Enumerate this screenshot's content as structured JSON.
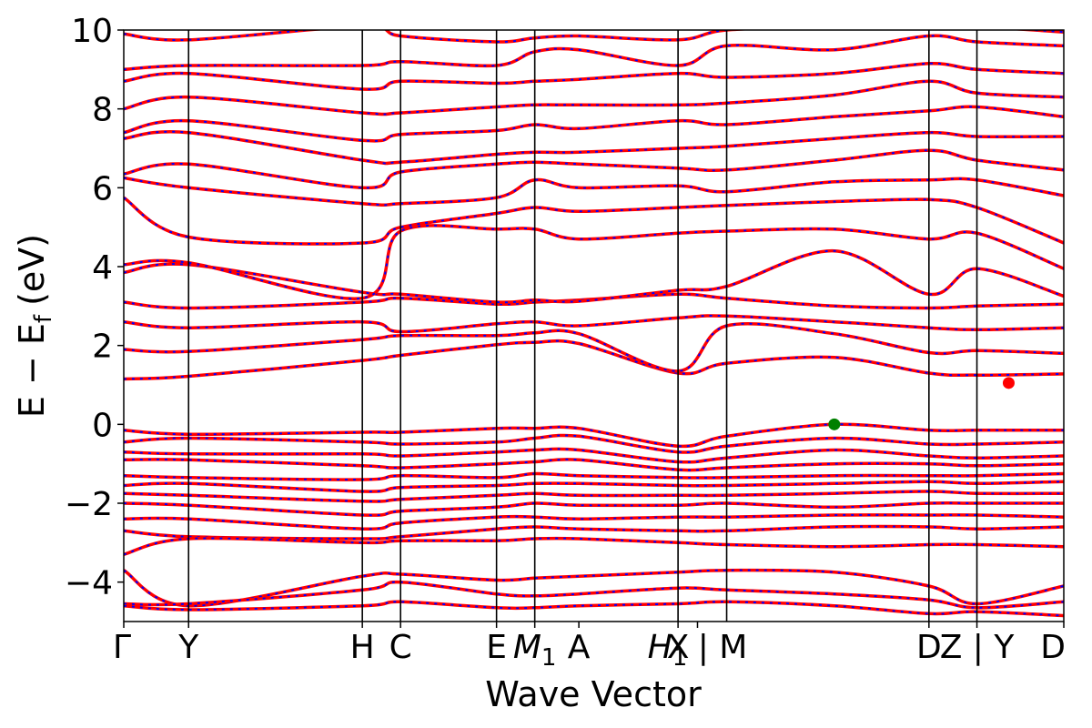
{
  "chart_data": {
    "type": "line",
    "title": "",
    "xlabel": "Wave Vector",
    "ylabel": "E − E",
    "ylabel_subscript": "f",
    "ylabel_unit": "(eV)",
    "ylim": [
      -5,
      10
    ],
    "xlim": [
      0,
      14.5
    ],
    "yticks": [
      -4,
      -2,
      0,
      2,
      4,
      6,
      8,
      10
    ],
    "ytick_labels": [
      "−4",
      "−2",
      "0",
      "2",
      "4",
      "6",
      "8",
      "10"
    ],
    "kpoints": [
      {
        "x": 0,
        "label": "Γ"
      },
      {
        "x": 1.0,
        "label": "Y"
      },
      {
        "x": 3.68,
        "label": "H"
      },
      {
        "x": 4.27,
        "label": "C"
      },
      {
        "x": 5.75,
        "label": "E"
      },
      {
        "x": 6.34,
        "label": "M1"
      },
      {
        "x": 7.02,
        "label": "A"
      },
      {
        "x": 8.55,
        "label": "X"
      },
      {
        "x": 8.85,
        "label": "H1 | M"
      },
      {
        "x": 12.42,
        "label": "D"
      },
      {
        "x": 13.16,
        "label": "Z | Y"
      },
      {
        "x": 14.5,
        "label": "D"
      }
    ],
    "vertical_lines": [
      1.0,
      3.68,
      4.27,
      5.75,
      6.34,
      8.55,
      9.3,
      12.42,
      13.16
    ],
    "special_points": [
      {
        "name": "VBM",
        "x": 10.96,
        "y": 0.0,
        "color": "#008000"
      },
      {
        "name": "CBM",
        "x": 13.65,
        "y": 1.05,
        "color": "#ff0000"
      }
    ],
    "series": [
      {
        "color": "#ff0000",
        "style": "solid"
      },
      {
        "color": "#0000ff",
        "style": "dotted"
      }
    ],
    "grid": false,
    "bands": [
      {
        "kx": [
          0,
          1.0,
          3.68,
          4.27,
          5.75,
          6.34,
          7.02,
          8.55,
          9.3,
          10.96,
          12.42,
          13.16,
          14.5
        ],
        "e": [
          1.15,
          1.22,
          1.62,
          1.75,
          2.02,
          2.08,
          2.05,
          1.3,
          1.55,
          1.7,
          1.3,
          1.25,
          1.28
        ]
      },
      {
        "kx": [
          0,
          1.0,
          3.68,
          4.27,
          5.75,
          6.34,
          7.02,
          8.55,
          9.3,
          10.96,
          12.42,
          13.16,
          14.5
        ],
        "e": [
          1.9,
          1.85,
          2.15,
          2.25,
          2.25,
          2.32,
          2.3,
          1.35,
          2.5,
          2.3,
          1.82,
          1.87,
          1.8
        ]
      },
      {
        "kx": [
          0,
          1.0,
          3.68,
          4.27,
          5.75,
          6.34,
          7.02,
          8.55,
          9.3,
          10.96,
          12.42,
          13.16,
          14.5
        ],
        "e": [
          2.6,
          2.45,
          2.6,
          2.35,
          2.55,
          2.6,
          2.5,
          2.7,
          2.75,
          2.6,
          2.45,
          2.4,
          2.45
        ]
      },
      {
        "kx": [
          0,
          1.0,
          3.68,
          4.27,
          5.75,
          6.34,
          7.02,
          8.55,
          9.3,
          10.96,
          12.42,
          13.16,
          14.5
        ],
        "e": [
          3.1,
          2.95,
          3.1,
          3.2,
          3.05,
          3.1,
          3.15,
          3.3,
          3.2,
          3.0,
          2.95,
          3.0,
          3.05
        ]
      },
      {
        "kx": [
          0,
          1.0,
          3.68,
          4.27,
          5.75,
          6.34,
          7.02,
          8.55,
          9.3,
          10.96,
          12.42,
          13.16,
          14.5
        ],
        "e": [
          3.85,
          4.05,
          3.35,
          3.3,
          3.1,
          3.15,
          3.12,
          3.4,
          3.5,
          4.4,
          3.3,
          3.95,
          3.25
        ]
      },
      {
        "kx": [
          0,
          1.0,
          3.68,
          4.27,
          5.75,
          6.34,
          7.02,
          8.55,
          9.3,
          10.96,
          12.42,
          13.16,
          14.5
        ],
        "e": [
          4.05,
          4.1,
          3.2,
          4.9,
          4.95,
          4.95,
          4.7,
          4.85,
          4.9,
          4.95,
          4.7,
          4.85,
          3.95
        ]
      },
      {
        "kx": [
          0,
          1.0,
          3.68,
          4.27,
          5.75,
          6.34,
          7.02,
          8.55,
          9.3,
          10.96,
          12.42,
          13.16,
          14.5
        ],
        "e": [
          5.75,
          4.75,
          4.6,
          5.0,
          5.35,
          5.5,
          5.4,
          5.5,
          5.55,
          5.65,
          5.7,
          5.5,
          4.6
        ]
      },
      {
        "kx": [
          0,
          1.0,
          3.68,
          4.27,
          5.75,
          6.34,
          7.02,
          8.55,
          9.3,
          10.96,
          12.42,
          13.16,
          14.5
        ],
        "e": [
          6.25,
          6.0,
          5.6,
          5.6,
          5.75,
          6.2,
          6.0,
          6.05,
          5.9,
          6.15,
          6.2,
          6.2,
          5.8
        ]
      },
      {
        "kx": [
          0,
          1.0,
          3.68,
          4.27,
          5.75,
          6.34,
          7.02,
          8.55,
          9.3,
          10.96,
          12.42,
          13.16,
          14.5
        ],
        "e": [
          6.35,
          6.6,
          6.0,
          6.4,
          6.6,
          6.65,
          6.6,
          6.5,
          6.45,
          6.7,
          6.95,
          6.7,
          6.45
        ]
      },
      {
        "kx": [
          0,
          1.0,
          3.68,
          4.27,
          5.75,
          6.34,
          7.02,
          8.55,
          9.3,
          10.96,
          12.42,
          13.16,
          14.5
        ],
        "e": [
          7.25,
          7.4,
          6.7,
          6.65,
          6.85,
          6.9,
          6.9,
          7.0,
          7.05,
          7.25,
          7.4,
          7.3,
          7.3
        ]
      },
      {
        "kx": [
          0,
          1.0,
          3.68,
          4.27,
          5.75,
          6.34,
          7.02,
          8.55,
          9.3,
          10.96,
          12.42,
          13.16,
          14.5
        ],
        "e": [
          7.4,
          7.7,
          7.2,
          7.35,
          7.45,
          7.6,
          7.5,
          7.7,
          7.6,
          7.8,
          7.95,
          8.05,
          7.8
        ]
      },
      {
        "kx": [
          0,
          1.0,
          3.68,
          4.27,
          5.75,
          6.34,
          7.02,
          8.55,
          9.3,
          10.96,
          12.42,
          13.16,
          14.5
        ],
        "e": [
          8.0,
          8.3,
          7.9,
          7.9,
          8.05,
          8.1,
          8.1,
          8.1,
          8.15,
          8.35,
          8.7,
          8.4,
          8.3
        ]
      },
      {
        "kx": [
          0,
          1.0,
          3.68,
          4.27,
          5.75,
          6.34,
          7.02,
          8.55,
          9.3,
          10.96,
          12.42,
          13.16,
          14.5
        ],
        "e": [
          8.7,
          8.9,
          8.5,
          8.7,
          8.65,
          8.7,
          8.75,
          8.9,
          8.8,
          8.9,
          9.15,
          9.0,
          8.9
        ]
      },
      {
        "kx": [
          0,
          1.0,
          3.68,
          4.27,
          5.75,
          6.34,
          7.02,
          8.55,
          9.3,
          10.96,
          12.42,
          13.16,
          14.5
        ],
        "e": [
          9.0,
          9.1,
          9.1,
          9.2,
          9.1,
          9.45,
          9.5,
          9.1,
          9.6,
          9.5,
          9.85,
          9.7,
          9.6
        ]
      },
      {
        "kx": [
          0,
          1.0,
          3.68,
          4.27,
          5.75,
          6.34,
          7.02,
          8.55,
          9.3,
          10.96,
          12.42,
          13.16,
          14.5
        ],
        "e": [
          9.9,
          9.75,
          10.1,
          9.85,
          9.7,
          9.8,
          9.85,
          9.75,
          10.0,
          10.1,
          10.2,
          10.1,
          9.95
        ]
      },
      {
        "kx": [
          0,
          1.0,
          3.68,
          4.27,
          5.75,
          6.34,
          7.02,
          8.55,
          9.3,
          10.96,
          12.42,
          13.16,
          14.5
        ],
        "e": [
          -0.15,
          -0.25,
          -0.2,
          -0.2,
          -0.1,
          -0.1,
          -0.1,
          -0.55,
          -0.3,
          0.0,
          -0.15,
          -0.15,
          -0.15
        ]
      },
      {
        "kx": [
          0,
          1.0,
          3.68,
          4.27,
          5.75,
          6.34,
          7.02,
          8.55,
          9.3,
          10.96,
          12.42,
          13.16,
          14.5
        ],
        "e": [
          -0.45,
          -0.35,
          -0.45,
          -0.5,
          -0.45,
          -0.35,
          -0.3,
          -0.7,
          -0.55,
          -0.35,
          -0.5,
          -0.5,
          -0.45
        ]
      },
      {
        "kx": [
          0,
          1.0,
          3.68,
          4.27,
          5.75,
          6.34,
          7.02,
          8.55,
          9.3,
          10.96,
          12.42,
          13.16,
          14.5
        ],
        "e": [
          -0.7,
          -0.75,
          -0.75,
          -0.8,
          -0.7,
          -0.65,
          -0.65,
          -0.95,
          -0.85,
          -0.65,
          -0.8,
          -0.85,
          -0.8
        ]
      },
      {
        "kx": [
          0,
          1.0,
          3.68,
          4.27,
          5.75,
          6.34,
          7.02,
          8.55,
          9.3,
          10.96,
          12.42,
          13.16,
          14.5
        ],
        "e": [
          -0.9,
          -0.9,
          -1.05,
          -1.1,
          -1.0,
          -0.95,
          -0.9,
          -1.15,
          -1.1,
          -1.0,
          -1.0,
          -1.05,
          -1.0
        ]
      },
      {
        "kx": [
          0,
          1.0,
          3.68,
          4.27,
          5.75,
          6.34,
          7.02,
          8.55,
          9.3,
          10.96,
          12.42,
          13.16,
          14.5
        ],
        "e": [
          -1.3,
          -1.35,
          -1.4,
          -1.3,
          -1.35,
          -1.25,
          -1.3,
          -1.35,
          -1.35,
          -1.3,
          -1.3,
          -1.3,
          -1.25
        ]
      },
      {
        "kx": [
          0,
          1.0,
          3.68,
          4.27,
          5.75,
          6.34,
          7.02,
          8.55,
          9.3,
          10.96,
          12.42,
          13.16,
          14.5
        ],
        "e": [
          -1.55,
          -1.5,
          -1.7,
          -1.6,
          -1.55,
          -1.5,
          -1.5,
          -1.55,
          -1.55,
          -1.5,
          -1.45,
          -1.5,
          -1.45
        ]
      },
      {
        "kx": [
          0,
          1.0,
          3.68,
          4.27,
          5.75,
          6.34,
          7.02,
          8.55,
          9.3,
          10.96,
          12.42,
          13.16,
          14.5
        ],
        "e": [
          -1.75,
          -1.8,
          -1.95,
          -1.9,
          -1.8,
          -1.75,
          -1.8,
          -1.8,
          -1.8,
          -1.75,
          -1.7,
          -1.75,
          -1.75
        ]
      },
      {
        "kx": [
          0,
          1.0,
          3.68,
          4.27,
          5.75,
          6.34,
          7.02,
          8.55,
          9.3,
          10.96,
          12.42,
          13.16,
          14.5
        ],
        "e": [
          -2.0,
          -2.05,
          -2.3,
          -2.2,
          -2.1,
          -2.0,
          -2.05,
          -2.05,
          -2.0,
          -2.1,
          -2.0,
          -2.0,
          -2.0
        ]
      },
      {
        "kx": [
          0,
          1.0,
          3.68,
          4.27,
          5.75,
          6.34,
          7.02,
          8.55,
          9.3,
          10.96,
          12.42,
          13.16,
          14.5
        ],
        "e": [
          -2.4,
          -2.4,
          -2.65,
          -2.5,
          -2.35,
          -2.35,
          -2.4,
          -2.35,
          -2.35,
          -2.3,
          -2.3,
          -2.3,
          -2.35
        ]
      },
      {
        "kx": [
          0,
          1.0,
          3.68,
          4.27,
          5.75,
          6.34,
          7.02,
          8.55,
          9.3,
          10.96,
          12.42,
          13.16,
          14.5
        ],
        "e": [
          -2.7,
          -2.85,
          -2.9,
          -2.85,
          -2.65,
          -2.6,
          -2.65,
          -2.7,
          -2.7,
          -2.6,
          -2.6,
          -2.65,
          -2.6
        ]
      },
      {
        "kx": [
          0,
          1.0,
          3.68,
          4.27,
          5.75,
          6.34,
          7.02,
          8.55,
          9.3,
          10.96,
          12.42,
          13.16,
          14.5
        ],
        "e": [
          -3.3,
          -2.9,
          -3.0,
          -2.95,
          -2.95,
          -2.9,
          -2.9,
          -3.0,
          -3.05,
          -3.1,
          -3.05,
          -3.05,
          -3.1
        ]
      },
      {
        "kx": [
          0,
          1.0,
          3.68,
          4.27,
          5.75,
          6.34,
          7.02,
          8.55,
          9.3,
          10.96,
          12.42,
          13.16,
          14.5
        ],
        "e": [
          -3.7,
          -4.6,
          -3.85,
          -3.8,
          -3.95,
          -3.9,
          -3.85,
          -3.75,
          -3.7,
          -3.75,
          -4.1,
          -4.55,
          -4.1
        ]
      },
      {
        "kx": [
          0,
          1.0,
          3.68,
          4.27,
          5.75,
          6.34,
          7.02,
          8.55,
          9.3,
          10.96,
          12.42,
          13.16,
          14.5
        ],
        "e": [
          -4.55,
          -4.55,
          -4.2,
          -4.0,
          -4.3,
          -4.35,
          -4.3,
          -4.15,
          -4.2,
          -4.3,
          -4.45,
          -4.65,
          -4.5
        ]
      },
      {
        "kx": [
          0,
          1.0,
          3.68,
          4.27,
          5.75,
          6.34,
          7.02,
          8.55,
          9.3,
          10.96,
          12.42,
          13.16,
          14.5
        ],
        "e": [
          -4.6,
          -4.7,
          -4.6,
          -4.5,
          -4.65,
          -4.65,
          -4.6,
          -4.55,
          -4.5,
          -4.6,
          -4.8,
          -4.75,
          -4.85
        ]
      }
    ]
  }
}
